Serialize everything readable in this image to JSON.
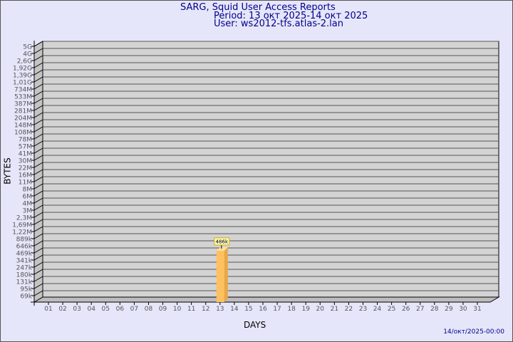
{
  "header": {
    "title": "SARG, Squid User Access Reports",
    "period": "Period: 13 окт 2025-14 окт 2025",
    "user": "User: ws2012-tfs.atlas-2.lan"
  },
  "footer": {
    "timestamp": "14/окт/2025-00:00"
  },
  "colors": {
    "background": "#e6e6fa",
    "plot": "#d3d3d3",
    "bar": "#ffc060",
    "title": "#00008b"
  },
  "chart_data": {
    "type": "bar",
    "xlabel": "DAYS",
    "ylabel": "BYTES",
    "yscale": "log",
    "y_ticks": [
      "5G",
      "4G",
      "2,6G",
      "1,92G",
      "1,39G",
      "1,01G",
      "734M",
      "533M",
      "387M",
      "281M",
      "204M",
      "148M",
      "108M",
      "78M",
      "57M",
      "41M",
      "30M",
      "22M",
      "16M",
      "11M",
      "8M",
      "6M",
      "4M",
      "3M",
      "2,3M",
      "1,69M",
      "1,22M",
      "889k",
      "646k",
      "469k",
      "341k",
      "247k",
      "180k",
      "131k",
      "95k",
      "69k"
    ],
    "categories": [
      "01",
      "02",
      "03",
      "04",
      "05",
      "06",
      "07",
      "08",
      "09",
      "10",
      "11",
      "12",
      "13",
      "14",
      "15",
      "16",
      "17",
      "18",
      "19",
      "20",
      "21",
      "22",
      "23",
      "24",
      "25",
      "26",
      "27",
      "28",
      "29",
      "30",
      "31"
    ],
    "values": [
      null,
      null,
      null,
      null,
      null,
      null,
      null,
      null,
      null,
      null,
      null,
      null,
      486000,
      null,
      null,
      null,
      null,
      null,
      null,
      null,
      null,
      null,
      null,
      null,
      null,
      null,
      null,
      null,
      null,
      null,
      null
    ],
    "data_labels": {
      "13": "486k"
    },
    "grid": true
  }
}
